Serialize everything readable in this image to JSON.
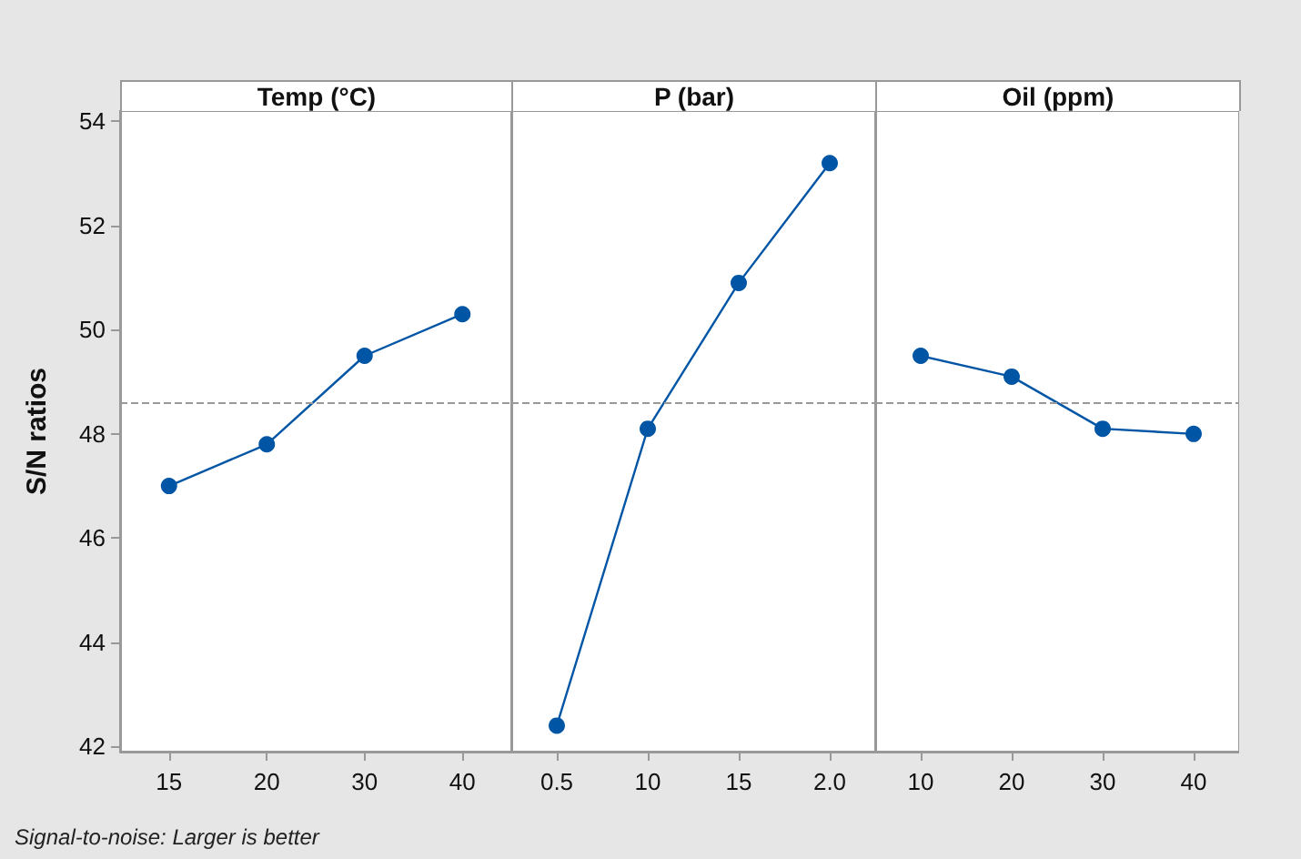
{
  "chart_data": [
    {
      "type": "line",
      "title": "Temp (°C)",
      "ylabel": "S/N ratios",
      "categories": [
        "15",
        "20",
        "30",
        "40"
      ],
      "values": [
        47.0,
        47.8,
        49.5,
        50.3
      ],
      "color": "#0055a5",
      "marker": "circle",
      "ylim": [
        41.9,
        54.2
      ],
      "yticks": [
        42,
        44,
        46,
        48,
        50,
        52,
        54
      ],
      "ref_lines": [
        {
          "axis": "y",
          "value": 48.6,
          "color": "#999999",
          "line_style": "dashed"
        }
      ],
      "annotations": [
        "Signal-to-noise: Larger is better"
      ]
    },
    {
      "type": "line",
      "title": "P (bar)",
      "categories": [
        "0.5",
        "10",
        "15",
        "2.0"
      ],
      "values": [
        42.4,
        48.1,
        50.9,
        53.2
      ],
      "color": "#0055a5",
      "marker": "circle",
      "ylim": [
        41.9,
        54.2
      ],
      "yticks": [
        42,
        44,
        46,
        48,
        50,
        52,
        54
      ],
      "tick_labels": "x",
      "ref_lines": [
        {
          "axis": "y",
          "value": 48.6,
          "color": "#999999",
          "line_style": "dashed"
        }
      ]
    },
    {
      "type": "line",
      "title": "Oil (ppm)",
      "categories": [
        "10",
        "20",
        "30",
        "40"
      ],
      "values": [
        49.5,
        49.1,
        48.1,
        48.0
      ],
      "color": "#0055a5",
      "marker": "circle",
      "ylim": [
        41.9,
        54.2
      ],
      "yticks": [
        42,
        44,
        46,
        48,
        50,
        52,
        54
      ],
      "tick_labels": "x",
      "ref_lines": [
        {
          "axis": "y",
          "value": 48.6,
          "color": "#999999",
          "line_style": "dashed"
        }
      ]
    }
  ]
}
